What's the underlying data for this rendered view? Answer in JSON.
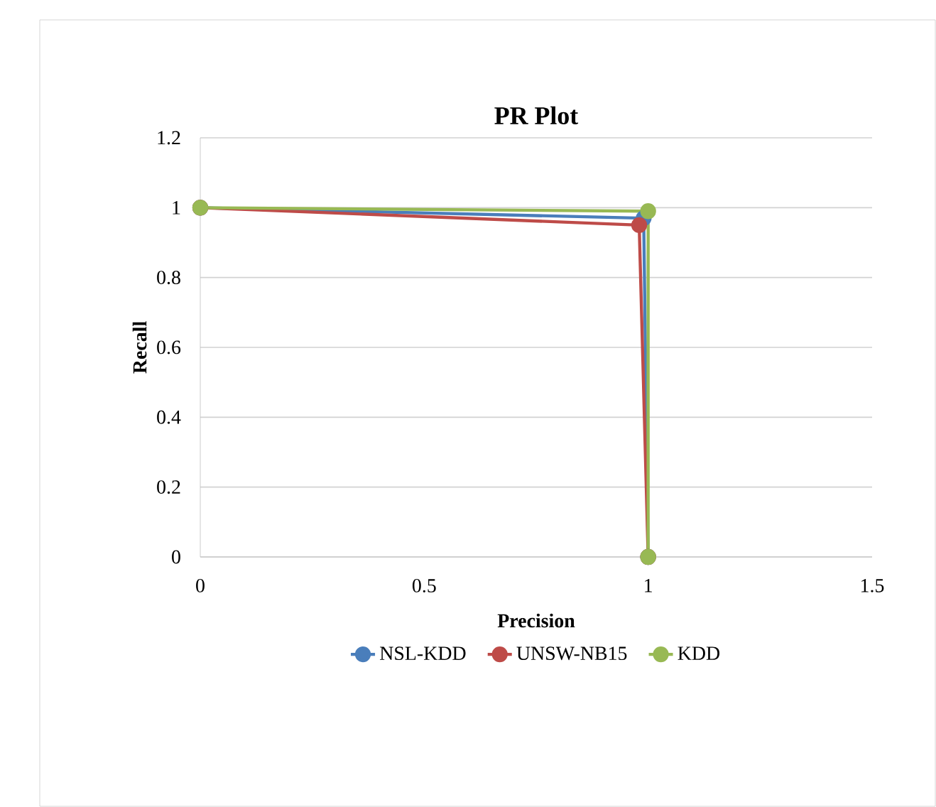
{
  "chart_data": {
    "type": "line",
    "title": "PR Plot",
    "xlabel": "Precision",
    "ylabel": "Recall",
    "xlim": [
      0,
      1.5
    ],
    "xticks": [
      0,
      0.5,
      1,
      1.5
    ],
    "ylim": [
      0,
      1.2
    ],
    "yticks": [
      0,
      0.2,
      0.4,
      0.6,
      0.8,
      1,
      1.2
    ],
    "grid": "y",
    "legend": "bottom",
    "marker": "circle",
    "series": [
      {
        "name": "NSL-KDD",
        "color": "#4a7ebb",
        "x": [
          0,
          0.99,
          1
        ],
        "values": [
          1,
          0.97,
          0
        ]
      },
      {
        "name": "UNSW-NB15",
        "color": "#be4b48",
        "x": [
          0,
          0.98,
          1
        ],
        "values": [
          1,
          0.95,
          0
        ]
      },
      {
        "name": "KDD",
        "color": "#98b954",
        "x": [
          0,
          1,
          1
        ],
        "values": [
          1,
          0.99,
          0
        ]
      }
    ]
  }
}
